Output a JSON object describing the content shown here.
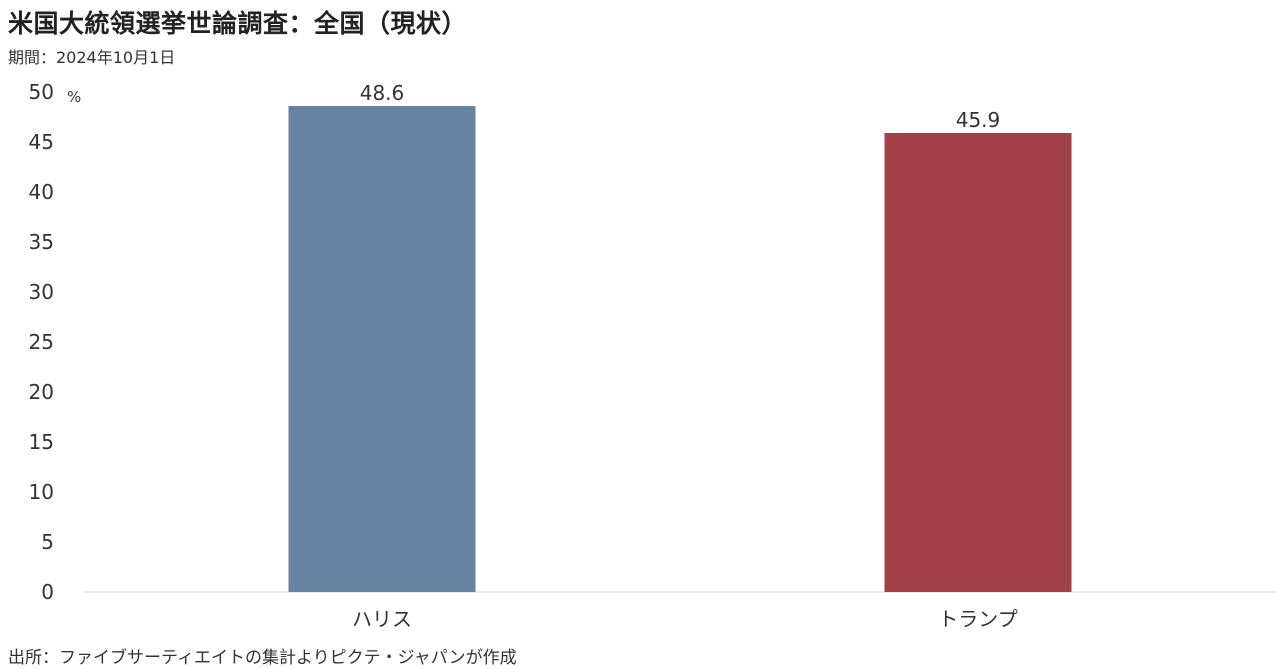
{
  "title": "米国大統領選挙世論調査：全国（現状）",
  "subtitle": "期間：2024年10月1日",
  "source": "出所：ファイブサーティエイトの集計よりピクテ・ジャパンが作成",
  "chart_data": {
    "type": "bar",
    "categories": [
      "ハリス",
      "トランプ"
    ],
    "values": [
      48.6,
      45.9
    ],
    "value_labels": [
      "48.6",
      "45.9"
    ],
    "colors": [
      "#6882a2",
      "#a14047"
    ],
    "unit": "%",
    "ylim": [
      0,
      50
    ],
    "yticks": [
      "0",
      "5",
      "10",
      "15",
      "20",
      "25",
      "30",
      "35",
      "40",
      "45",
      "50"
    ],
    "grid": false,
    "legend": "none"
  }
}
